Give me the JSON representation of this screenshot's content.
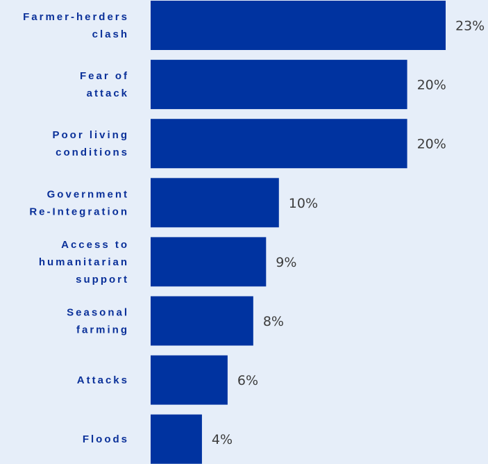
{
  "chart_data": {
    "type": "bar",
    "orientation": "horizontal",
    "categories": [
      [
        "Farmer-herders",
        "clash"
      ],
      [
        "Fear of",
        "attack"
      ],
      [
        "Poor living",
        "conditions"
      ],
      [
        "Government",
        "Re-Integration"
      ],
      [
        "Access to",
        "humanitarian",
        "support"
      ],
      [
        "Seasonal",
        "farming"
      ],
      [
        "Attacks"
      ],
      [
        "Floods"
      ]
    ],
    "values": [
      23,
      20,
      20,
      10,
      9,
      8,
      6,
      4
    ],
    "value_labels": [
      "23%",
      "20%",
      "20%",
      "10%",
      "9%",
      "8%",
      "6%",
      "4%"
    ],
    "unit": "%",
    "xlim": [
      0,
      23
    ],
    "title": "",
    "xlabel": "",
    "ylabel": "",
    "grid": false,
    "legend": "none",
    "colors": {
      "bar": "#0033a0",
      "background": "#e6eef9",
      "category_text": "#0a3099",
      "value_text": "#3c3c3c"
    }
  }
}
